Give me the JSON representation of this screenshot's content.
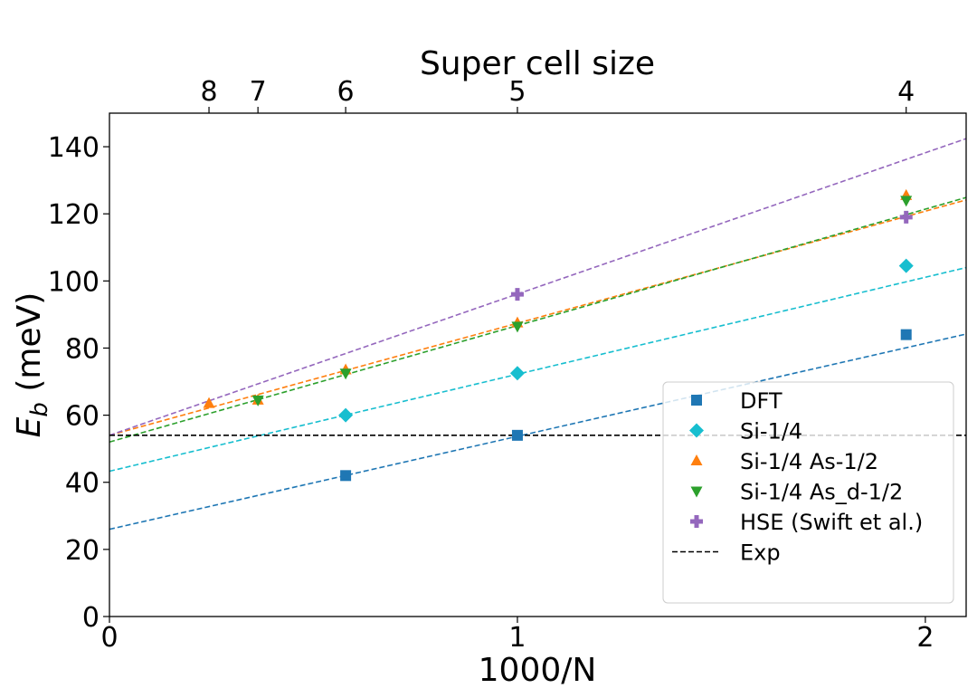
{
  "chart_data": {
    "type": "scatter",
    "title": "",
    "top_axis_title": "Super cell size",
    "xlabel": "1000/N",
    "ylabel_main": "E",
    "ylabel_sub": "b",
    "ylabel_unit": " (meV)",
    "xlim": [
      0,
      2.1
    ],
    "ylim": [
      0,
      150
    ],
    "x_ticks": [
      0,
      1,
      2
    ],
    "x_tick_labels": [
      "0",
      "1",
      "2"
    ],
    "y_ticks": [
      0,
      20,
      40,
      60,
      80,
      100,
      120,
      140
    ],
    "y_tick_labels": [
      "0",
      "20",
      "40",
      "60",
      "80",
      "100",
      "120",
      "140"
    ],
    "top_ticks": [
      0.244,
      0.364,
      0.579,
      1.0,
      1.953
    ],
    "top_tick_labels": [
      "8",
      "7",
      "6",
      "5",
      "4"
    ],
    "legend_position": "lower-right",
    "series": [
      {
        "name": "DFT",
        "marker": "square",
        "color": "#1f77b4",
        "x": [
          0.579,
          1.0,
          1.953
        ],
        "y": [
          42,
          54,
          84
        ],
        "fit": {
          "intercept": 26,
          "slope": 27.7
        }
      },
      {
        "name": "Si-1/4",
        "marker": "diamond",
        "color": "#17becf",
        "x": [
          0.579,
          1.0,
          1.953
        ],
        "y": [
          60,
          72.5,
          104.5
        ],
        "fit": {
          "intercept": 43.3,
          "slope": 28.9
        }
      },
      {
        "name": "Si-1/4 As-1/2",
        "marker": "triangle-up",
        "color": "#ff7f0e",
        "x": [
          0.244,
          0.364,
          0.579,
          1.0,
          1.953
        ],
        "y": [
          63.5,
          64.5,
          73.5,
          87.5,
          125.5
        ],
        "fit": {
          "intercept": 54,
          "slope": 33.4
        }
      },
      {
        "name": "Si-1/4 As_d-1/2",
        "marker": "triangle-down",
        "color": "#2ca02c",
        "x": [
          0.364,
          0.579,
          1.0,
          1.953
        ],
        "y": [
          64.5,
          72.5,
          86.5,
          124
        ],
        "fit": {
          "intercept": 52,
          "slope": 34.7
        }
      },
      {
        "name": "HSE (Swift et al.)",
        "marker": "plus",
        "color": "#9467bd",
        "x": [
          1.0,
          1.953
        ],
        "y": [
          96,
          119
        ],
        "fit": {
          "intercept": 54,
          "slope": 42.1
        }
      }
    ],
    "reference_line": {
      "name": "Exp",
      "y": 54,
      "color": "#000000",
      "style": "dashed"
    }
  }
}
